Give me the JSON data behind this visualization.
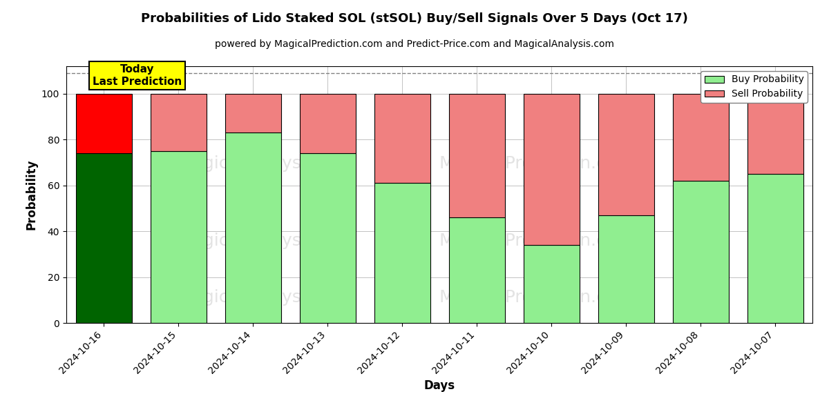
{
  "title": "Probabilities of Lido Staked SOL (stSOL) Buy/Sell Signals Over 5 Days (Oct 17)",
  "subtitle": "powered by MagicalPrediction.com and Predict-Price.com and MagicalAnalysis.com",
  "xlabel": "Days",
  "ylabel": "Probability",
  "dates": [
    "2024-10-16",
    "2024-10-15",
    "2024-10-14",
    "2024-10-13",
    "2024-10-12",
    "2024-10-11",
    "2024-10-10",
    "2024-10-09",
    "2024-10-08",
    "2024-10-07"
  ],
  "buy_probs": [
    74,
    75,
    83,
    74,
    61,
    46,
    34,
    47,
    62,
    65
  ],
  "sell_probs": [
    26,
    25,
    17,
    26,
    39,
    54,
    66,
    53,
    38,
    35
  ],
  "today_buy_color": "#006400",
  "today_sell_color": "#FF0000",
  "buy_color": "#90EE90",
  "sell_color": "#F08080",
  "today_label_bg": "#FFFF00",
  "watermark_color": "#cccccc",
  "ylim": [
    0,
    112
  ],
  "dashed_line_y": 109,
  "grid_color": "#aaaaaa",
  "legend_buy_label": "Buy Probability",
  "legend_sell_label": "Sell Probability",
  "figsize": [
    12,
    6
  ],
  "dpi": 100
}
